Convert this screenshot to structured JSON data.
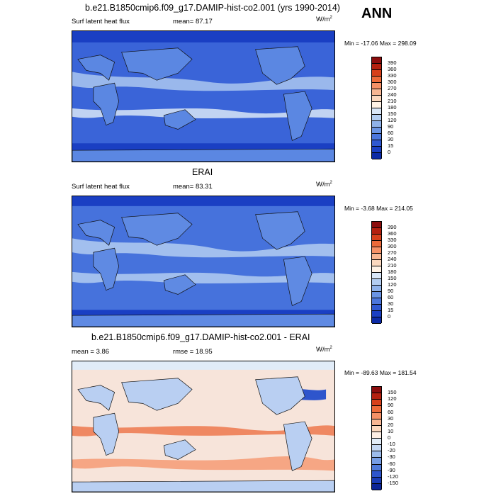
{
  "season": "ANN",
  "panels": [
    {
      "title": "b.e21.B1850cmip6.f09_g17.DAMIP-hist-co2.001 (yrs 1990-2014)",
      "left_label": "Surf latent heat flux",
      "center_label": "mean=  87.17",
      "units": "W/m",
      "units_sup": "2",
      "minmax": "Min = -17.06 Max = 298.09",
      "ticks": [
        "390",
        "360",
        "330",
        "300",
        "270",
        "240",
        "210",
        "180",
        "150",
        "120",
        "90",
        "60",
        "30",
        "15",
        "0"
      ],
      "colors": [
        "#8b0d0d",
        "#b3200f",
        "#d6401b",
        "#ec6a3a",
        "#f59167",
        "#f7b693",
        "#fbd8bf",
        "#fff2e6",
        "#d9e6f7",
        "#b3cdf1",
        "#8fb2ea",
        "#6a94e4",
        "#4b76dc",
        "#2f58d1",
        "#1a3fc3",
        "#0c2aa6"
      ],
      "ocean": "#3a64d8",
      "land": "#5b87e2"
    },
    {
      "title": "ERAI",
      "left_label": "Surf latent heat flux",
      "center_label": "mean=  83.31",
      "units": "W/m",
      "units_sup": "2",
      "minmax": "Min =  -3.68 Max = 214.05",
      "ticks": [
        "390",
        "360",
        "330",
        "300",
        "270",
        "240",
        "210",
        "180",
        "150",
        "120",
        "90",
        "60",
        "30",
        "15",
        "0"
      ],
      "colors": [
        "#8b0d0d",
        "#b3200f",
        "#d6401b",
        "#ec6a3a",
        "#f59167",
        "#f7b693",
        "#fbd8bf",
        "#fff2e6",
        "#d9e6f7",
        "#b3cdf1",
        "#8fb2ea",
        "#6a94e4",
        "#4b76dc",
        "#2f58d1",
        "#1a3fc3",
        "#0c2aa6"
      ],
      "ocean": "#4672dc",
      "land": "#5f8ae3"
    },
    {
      "title": "b.e21.B1850cmip6.f09_g17.DAMIP-hist-co2.001 - ERAI",
      "left_label": "mean =   3.86",
      "center_label": "rmse =  18.95",
      "units": "W/m",
      "units_sup": "2",
      "minmax": "Min = -89.63 Max = 181.54",
      "ticks": [
        "150",
        "120",
        "90",
        "60",
        "30",
        "20",
        "10",
        "0",
        "-10",
        "-20",
        "-30",
        "-60",
        "-90",
        "-120",
        "-150"
      ],
      "colors": [
        "#8b0d0d",
        "#b3200f",
        "#d6401b",
        "#ec6a3a",
        "#f59167",
        "#f7b693",
        "#fbd8bf",
        "#fdeee4",
        "#e1ecf8",
        "#c3d7f3",
        "#9dbceb",
        "#769de4",
        "#4f7ad9",
        "#2e55cc",
        "#1a3bb5",
        "#0c2496"
      ],
      "ocean": "#f7e4da",
      "land": "#b9cff2"
    }
  ]
}
